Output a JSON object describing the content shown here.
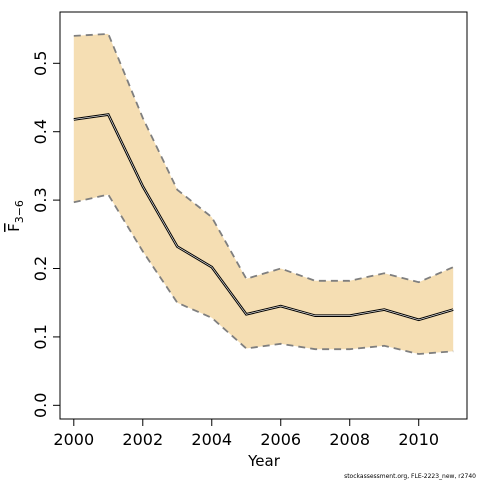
{
  "chart_data": {
    "type": "area",
    "xlabel": "Year",
    "ylabel_main": "F",
    "ylabel_sub": "3−6",
    "xlim": [
      1999.6,
      2011.4
    ],
    "ylim": [
      -0.02,
      0.575
    ],
    "xticks": [
      2000,
      2002,
      2004,
      2006,
      2008,
      2010
    ],
    "yticks": [
      0.0,
      0.1,
      0.2,
      0.3,
      0.4,
      0.5
    ],
    "ytick_labels": [
      "0.0",
      "0.1",
      "0.2",
      "0.3",
      "0.4",
      "0.5"
    ],
    "grid": false,
    "x": [
      2000,
      2001,
      2002,
      2003,
      2004,
      2005,
      2006,
      2007,
      2008,
      2009,
      2010,
      2011
    ],
    "series": [
      {
        "role": "estimate",
        "values": [
          0.418,
          0.425,
          0.32,
          0.232,
          0.202,
          0.133,
          0.145,
          0.131,
          0.131,
          0.14,
          0.125,
          0.14
        ]
      },
      {
        "role": "upper",
        "values": [
          0.54,
          0.543,
          0.42,
          0.315,
          0.275,
          0.185,
          0.2,
          0.182,
          0.182,
          0.193,
          0.18,
          0.202
        ]
      },
      {
        "role": "lower",
        "values": [
          0.297,
          0.308,
          0.225,
          0.15,
          0.128,
          0.083,
          0.09,
          0.082,
          0.082,
          0.087,
          0.075,
          0.079
        ]
      }
    ],
    "band_color": "#F5DEB3",
    "bound_line_color": "#7f7f7f",
    "main_line_color": "#000000"
  },
  "footnote": "stockassessment.org, FLE-2223_new, r2740"
}
